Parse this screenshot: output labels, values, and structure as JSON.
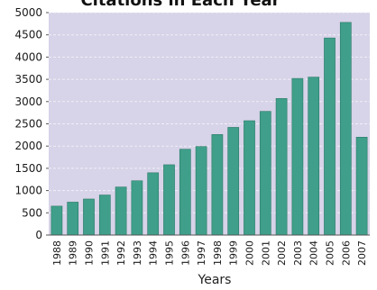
{
  "chart_data": {
    "type": "bar",
    "title": "Citations in Each Year",
    "xlabel": "Years",
    "ylabel": "",
    "ylim": [
      0,
      5000
    ],
    "yticks": [
      0,
      500,
      1000,
      1500,
      2000,
      2500,
      3000,
      3500,
      4000,
      4500,
      5000
    ],
    "grid": true,
    "categories": [
      "1988",
      "1989",
      "1990",
      "1991",
      "1992",
      "1993",
      "1994",
      "1995",
      "1996",
      "1997",
      "1998",
      "1999",
      "2000",
      "2001",
      "2002",
      "2003",
      "2004",
      "2005",
      "2006",
      "2007"
    ],
    "values": [
      650,
      740,
      810,
      900,
      1080,
      1220,
      1400,
      1580,
      1930,
      1990,
      2260,
      2420,
      2570,
      2780,
      3070,
      3520,
      3550,
      4430,
      4780,
      2200
    ]
  },
  "colors": {
    "plot_bg": "#d7d3e8",
    "bar": "#3f9f8a",
    "bar_edge": "#2c7a68",
    "grid": "#f2f0f8",
    "axis": "#555555"
  }
}
